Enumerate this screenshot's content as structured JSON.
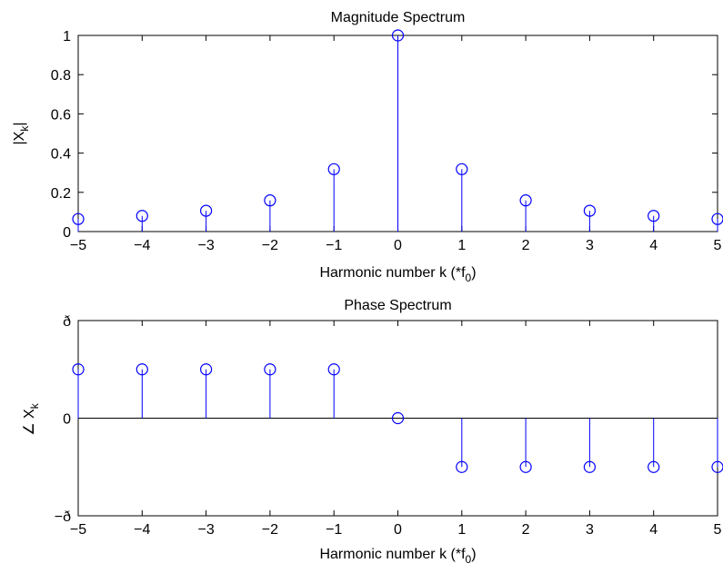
{
  "chart_data": [
    {
      "type": "stem",
      "title": "Magnitude Spectrum",
      "xlabel": {
        "main": "Harmonic number k (*f",
        "sub": "0",
        "close": ")"
      },
      "ylabel": {
        "prefix": "|X",
        "sub": "k",
        "suffix": "|"
      },
      "xlim": [
        -5,
        5
      ],
      "ylim": [
        0,
        1
      ],
      "xticks": [
        "−5",
        "−4",
        "−3",
        "−2",
        "−1",
        "0",
        "1",
        "2",
        "3",
        "4",
        "5"
      ],
      "yticks": [
        "0",
        "0.2",
        "0.4",
        "0.6",
        "0.8",
        "1"
      ],
      "x": [
        -5,
        -4,
        -3,
        -2,
        -1,
        0,
        1,
        2,
        3,
        4,
        5
      ],
      "y": [
        0.064,
        0.08,
        0.106,
        0.159,
        0.318,
        1.0,
        0.318,
        0.159,
        0.106,
        0.08,
        0.064
      ],
      "color": "#0000ff",
      "baseline": 0,
      "grid": false
    },
    {
      "type": "stem",
      "title": "Phase Spectrum",
      "xlabel": {
        "main": "Harmonic number k (*f",
        "sub": "0",
        "close": ")"
      },
      "ylabel": {
        "prefix": "∠ X",
        "sub": "k",
        "suffix": ""
      },
      "xlim": [
        -5,
        5
      ],
      "ylim": [
        -3.1416,
        3.1416
      ],
      "xticks": [
        "−5",
        "−4",
        "−3",
        "−2",
        "−1",
        "0",
        "1",
        "2",
        "3",
        "4",
        "5"
      ],
      "yticks": [
        "−ð",
        "0",
        "ð"
      ],
      "x": [
        -5,
        -4,
        -3,
        -2,
        -1,
        0,
        1,
        2,
        3,
        4,
        5
      ],
      "y": [
        1.5708,
        1.5708,
        1.5708,
        1.5708,
        1.5708,
        0,
        -1.5708,
        -1.5708,
        -1.5708,
        -1.5708,
        -1.5708
      ],
      "color": "#0000ff",
      "baseline": 0,
      "grid": false
    }
  ]
}
